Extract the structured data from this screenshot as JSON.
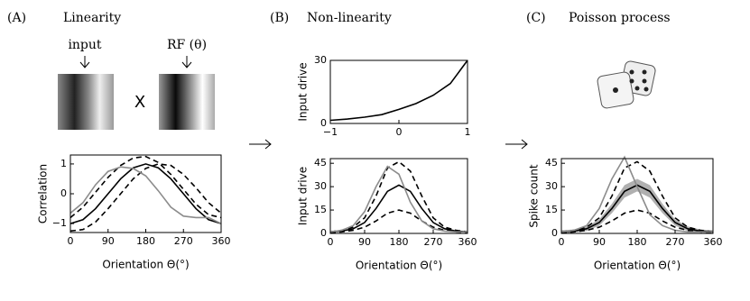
{
  "panels": [
    {
      "letter": "(A)",
      "title": "Linearity"
    },
    {
      "letter": "(B)",
      "title": "Non-linearity"
    },
    {
      "letter": "(C)",
      "title": "Poisson process"
    }
  ],
  "image_labels": {
    "input": "input",
    "rf": "RF (θ)",
    "times": "X"
  },
  "chart_data": [
    {
      "type": "line",
      "x_label": "Orientation Θ(°)",
      "y_label": "Correlation",
      "x": [
        0,
        30,
        60,
        90,
        120,
        150,
        180,
        210,
        240,
        270,
        300,
        330,
        360
      ],
      "xlim": [
        0,
        360
      ],
      "xticks": [
        0,
        90,
        180,
        270,
        360
      ],
      "ylim": [
        -1.3,
        1.3
      ],
      "yticks": [
        {
          "value": -1,
          "label": "−1"
        },
        0,
        1
      ],
      "series": [
        {
          "color": "#000000",
          "linestyle": "solid",
          "values": [
            -1,
            -0.87,
            -0.5,
            0,
            0.5,
            0.87,
            1,
            0.87,
            0.5,
            0,
            -0.5,
            -0.87,
            -1
          ]
        },
        {
          "color": "#000000",
          "linestyle": "dashed",
          "values": [
            -0.8,
            -0.45,
            0.05,
            0.55,
            0.95,
            1.2,
            1.25,
            1.05,
            0.65,
            0.15,
            -0.35,
            -0.7,
            -0.8
          ]
        },
        {
          "color": "#000000",
          "linestyle": "dashed",
          "values": [
            -1.25,
            -1.2,
            -0.95,
            -0.5,
            0,
            0.5,
            0.85,
            1.0,
            0.95,
            0.65,
            0.2,
            -0.3,
            -0.65
          ]
        },
        {
          "color": "#8c8c8c",
          "linestyle": "solid",
          "values": [
            -0.65,
            -0.3,
            0.3,
            0.75,
            0.9,
            0.85,
            0.6,
            0.1,
            -0.45,
            -0.75,
            -0.8,
            -0.8,
            -1.0
          ]
        }
      ]
    },
    {
      "type": "line",
      "y_label": "Input drive",
      "x": [
        -1,
        -0.75,
        -0.5,
        -0.25,
        0,
        0.25,
        0.5,
        0.75,
        1
      ],
      "xlim": [
        -1,
        1
      ],
      "xticks": [
        {
          "value": -1,
          "label": "−1"
        },
        0,
        1
      ],
      "ylim": [
        0,
        30
      ],
      "yticks": [
        0,
        30
      ],
      "series": [
        {
          "color": "#000000",
          "linestyle": "solid",
          "values": [
            1.5,
            2.1,
            3.0,
            4.2,
            6.7,
            9.5,
            13.4,
            19,
            30
          ]
        }
      ]
    },
    {
      "type": "line",
      "x_label": "Orientation Θ(°)",
      "y_label": "Input drive",
      "x": [
        0,
        30,
        60,
        90,
        120,
        150,
        180,
        210,
        240,
        270,
        300,
        330,
        360
      ],
      "xlim": [
        0,
        360
      ],
      "xticks": [
        0,
        90,
        180,
        270,
        360
      ],
      "ylim": [
        0,
        48
      ],
      "yticks": [
        0,
        15,
        30,
        45
      ],
      "series": [
        {
          "color": "#000000",
          "linestyle": "solid",
          "values": [
            1,
            1.5,
            3,
            7,
            16,
            27,
            31,
            27,
            16,
            7,
            3,
            1.5,
            1
          ]
        },
        {
          "color": "#000000",
          "linestyle": "dashed",
          "values": [
            1,
            2,
            4,
            10,
            24,
            42,
            46,
            40,
            24,
            10,
            4,
            2,
            1
          ]
        },
        {
          "color": "#000000",
          "linestyle": "dashed",
          "values": [
            0.5,
            1,
            2,
            4,
            8,
            13,
            15,
            13,
            8,
            4,
            2,
            1,
            0.5
          ]
        },
        {
          "color": "#8c8c8c",
          "linestyle": "solid",
          "values": [
            1,
            2,
            5,
            14,
            30,
            43,
            38,
            20,
            8,
            3,
            1.5,
            1,
            1
          ]
        }
      ]
    },
    {
      "type": "line",
      "x_label": "Orientation Θ(°)",
      "y_label": "Spike count",
      "x": [
        0,
        30,
        60,
        90,
        120,
        150,
        180,
        210,
        240,
        270,
        300,
        330,
        360
      ],
      "xlim": [
        0,
        360
      ],
      "xticks": [
        0,
        90,
        180,
        270,
        360
      ],
      "ylim": [
        0,
        48
      ],
      "yticks": [
        0,
        15,
        30,
        45
      ],
      "series": [
        {
          "color": "#000000",
          "linestyle": "solid",
          "values": [
            1,
            1.5,
            3,
            7,
            16,
            27,
            31,
            27,
            16,
            7,
            3,
            1.5,
            1
          ],
          "errors": [
            1,
            1,
            1.5,
            2,
            3,
            4,
            4,
            4,
            3,
            2,
            1.5,
            1,
            1
          ],
          "band_color": "#b0b0b0"
        },
        {
          "color": "#000000",
          "linestyle": "dashed",
          "values": [
            1,
            2,
            4,
            10,
            24,
            42,
            46,
            40,
            24,
            10,
            4,
            2,
            1
          ]
        },
        {
          "color": "#000000",
          "linestyle": "dashed",
          "values": [
            0.5,
            1,
            2,
            4,
            8,
            13,
            15,
            13,
            8,
            4,
            2,
            1,
            0.5
          ]
        },
        {
          "color": "#8c8c8c",
          "linestyle": "solid",
          "values": [
            1,
            2,
            5,
            16,
            35,
            49,
            30,
            12,
            5,
            2,
            1,
            1,
            1
          ]
        }
      ]
    }
  ]
}
